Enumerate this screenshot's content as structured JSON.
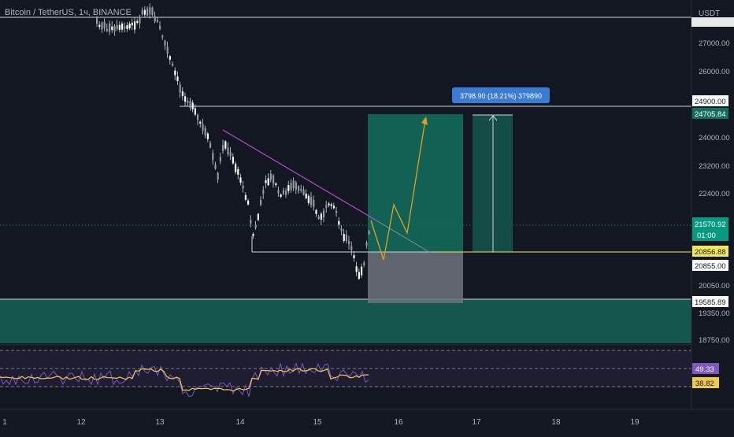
{
  "symbol": {
    "title": "Bitcoin / TetherUS, 1ч, BINANCE",
    "currency": "USDT"
  },
  "chart_data": {
    "type": "candlestick",
    "x_ticks": [
      "1",
      "12",
      "13",
      "14",
      "15",
      "16",
      "17",
      "18",
      "19"
    ],
    "y_ticks": [
      "27000.00",
      "26000.00",
      "24000.00",
      "23200.00",
      "22400.00",
      "20050.00",
      "19350.00",
      "18750.00"
    ],
    "price_labels": {
      "top": "24900.00",
      "target": "24705.84",
      "current": "21570.92",
      "countdown": "01:00",
      "support": "20856.88",
      "stop": "20855.00",
      "zone_top": "19585.89"
    },
    "measure_label": "3798.90 (18.21%) 379890",
    "rsi": {
      "value": "49.33",
      "ma_value": "38.82"
    }
  },
  "colors": {
    "background": "#131722",
    "up": "#ffffff",
    "down": "#ffffff",
    "trendline": "#b44bd8",
    "projection": "#e0a020",
    "target_zone": "#136e5e",
    "stop_zone": "#6f727d",
    "support_zone": "#15564f",
    "measure_bg": "#3a7bd5",
    "rsi_line": "#7e57c2",
    "rsi_ma": "#f0c84c",
    "current_price": "#089981",
    "support_label": "#f5e85a"
  }
}
